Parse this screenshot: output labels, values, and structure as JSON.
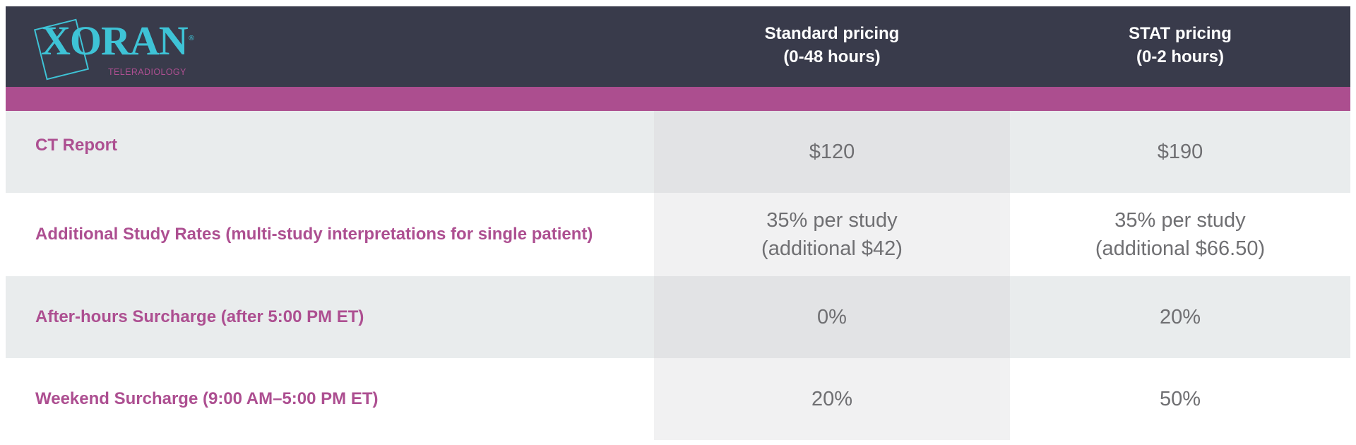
{
  "header": {
    "logo": {
      "wordmark": "XORAN",
      "registered_mark": "®",
      "tagline": "TELERADIOLOGY"
    },
    "columns": [
      {
        "line1": "Standard pricing",
        "line2": "(0-48 hours)"
      },
      {
        "line1": "STAT pricing",
        "line2": "(0-2 hours)"
      }
    ]
  },
  "rows": [
    {
      "label": "CT Report",
      "standard": "$120",
      "stat": "$190"
    },
    {
      "label": "Additional Study Rates (multi-study interpretations for single patient)",
      "standard_line1": "35% per study",
      "standard_line2": "(additional $42)",
      "stat_line1": "35% per study",
      "stat_line2": "(additional $66.50)"
    },
    {
      "label": "After-hours Surcharge (after 5:00 PM ET)",
      "standard": "0%",
      "stat": "20%"
    },
    {
      "label": "Weekend Surcharge (9:00 AM–5:00 PM ET)",
      "standard": "20%",
      "stat": "50%"
    }
  ],
  "colors": {
    "header_bg": "#393b4b",
    "accent": "#ac4e8f",
    "logo": "#3ec3d6",
    "label_text": "#ad4f91",
    "value_text": "#6f6f72"
  }
}
